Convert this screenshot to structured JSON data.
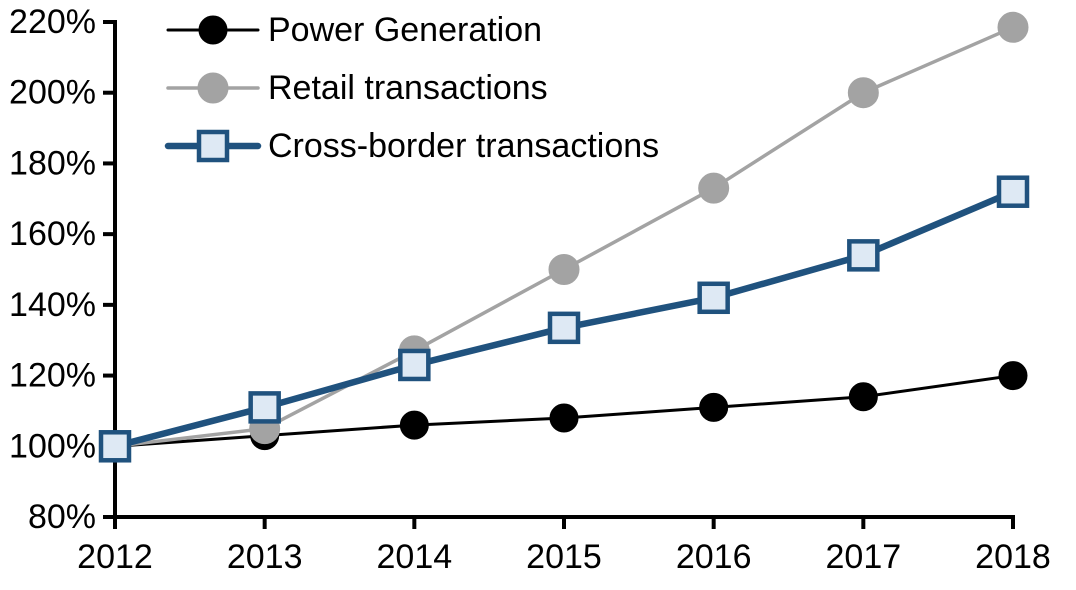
{
  "page": {
    "background": "#ffffff"
  },
  "chart_data": {
    "type": "line",
    "title": "",
    "xlabel": "",
    "ylabel": "",
    "x_categories": [
      "2012",
      "2013",
      "2014",
      "2015",
      "2016",
      "2017",
      "2018"
    ],
    "y_axis": {
      "min": 80,
      "max": 220,
      "tick_step": 20,
      "tick_labels": [
        "80%",
        "100%",
        "120%",
        "140%",
        "160%",
        "180%",
        "200%",
        "220%"
      ]
    },
    "grid": false,
    "axis_color": "#000000",
    "legend": {
      "position": "top-left"
    },
    "series": [
      {
        "name": "Power Generation",
        "color": "#000000",
        "marker": "circle",
        "marker_fill": "#000000",
        "marker_stroke": "#000000",
        "values": [
          100,
          103,
          106,
          108,
          111,
          114,
          120
        ]
      },
      {
        "name": "Retail transactions",
        "color": "#A3A3A3",
        "marker": "circle",
        "marker_fill": "#A3A3A3",
        "marker_stroke": "#A3A3A3",
        "values": [
          100,
          105,
          127,
          150,
          173,
          200,
          218.5
        ]
      },
      {
        "name": "Cross-border transactions",
        "color": "#20527E",
        "marker": "square",
        "marker_fill": "#DEE9F4",
        "marker_stroke": "#20527E",
        "values": [
          100,
          111,
          123,
          133.5,
          142,
          154,
          172
        ]
      }
    ]
  }
}
